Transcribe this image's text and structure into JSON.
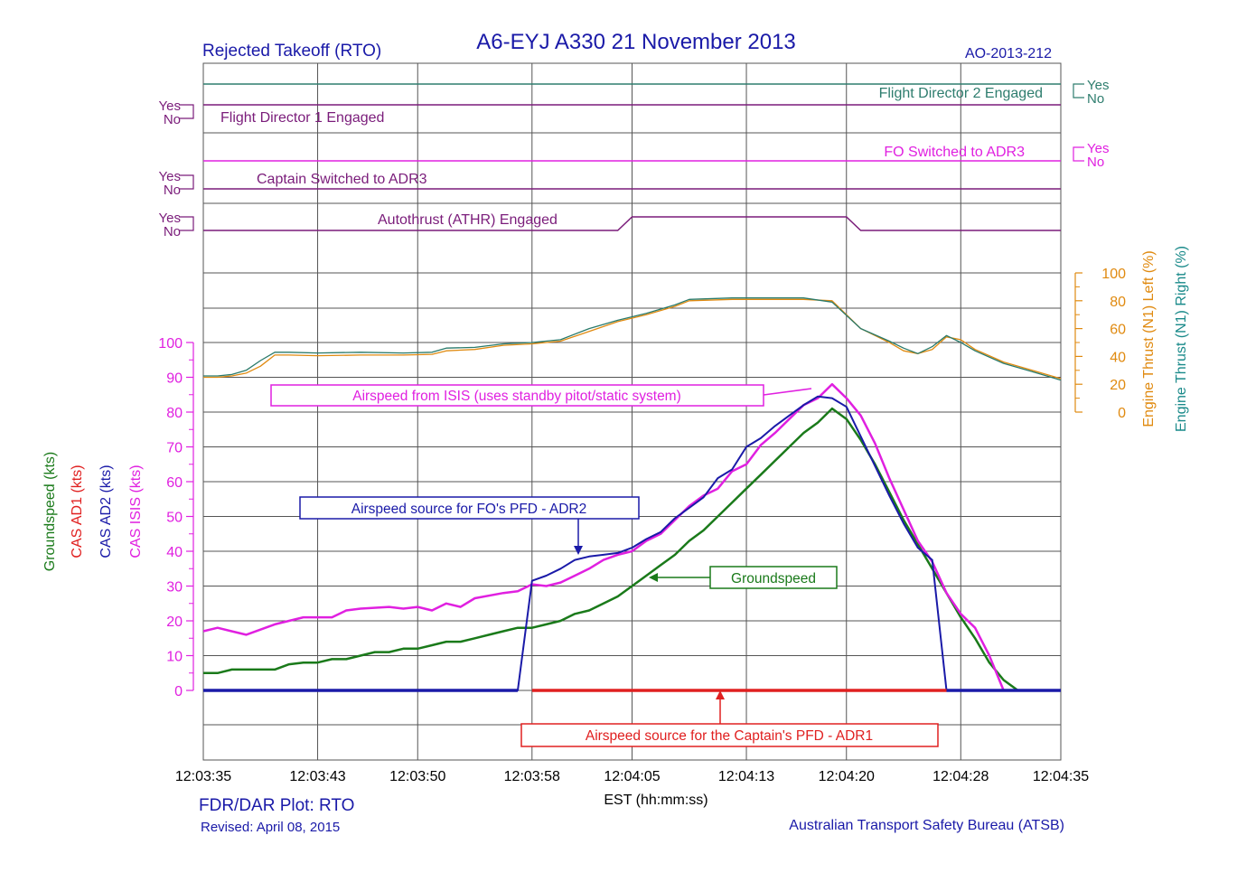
{
  "header": {
    "left": "Rejected Takeoff (RTO)",
    "title": "A6-EYJ  A330  21 November 2013",
    "right": "AO-2013-212"
  },
  "footer": {
    "plot": "FDR/DAR Plot: RTO",
    "revised": "Revised: April 08, 2015",
    "agency": "Australian Transport Safety Bureau (ATSB)",
    "xlabel": "EST (hh:mm:ss)"
  },
  "colors": {
    "fd": "#2e7d6e",
    "purple": "#7a1c7a",
    "magenta": "#e020e0",
    "green": "#1a7a1a",
    "red": "#e02020",
    "blue": "#1a1aa8",
    "orange": "#e08a10",
    "teal": "#1a8a8a",
    "grid": "#555555"
  },
  "discretes": [
    {
      "key": "fd2",
      "label": "Flight Director 2 Engaged",
      "side": "right",
      "yes": "Yes",
      "no": "No",
      "state": "Yes"
    },
    {
      "key": "fd1",
      "label": "Flight Director 1 Engaged",
      "side": "left",
      "yes": "Yes",
      "no": "No",
      "state": "Yes"
    },
    {
      "key": "fo_adr3",
      "label": "FO Switched to ADR3",
      "side": "right",
      "yes": "Yes",
      "no": "No",
      "state": "No"
    },
    {
      "key": "capt_adr3",
      "label": "Captain Switched to ADR3",
      "side": "left",
      "yes": "Yes",
      "no": "No",
      "state": "No"
    },
    {
      "key": "athr",
      "label": "Autothrust (ATHR) Engaged",
      "side": "left",
      "yes": "Yes",
      "no": "No",
      "state": "No",
      "transitions": [
        [
          "12:04:04",
          "12:04:05"
        ],
        [
          "12:04:20",
          "12:04:21"
        ]
      ]
    }
  ],
  "annotations": {
    "isis": "Airspeed from ISIS (uses standby pitot/static system)",
    "fo_pfd": "Airspeed source for FO's PFD - ADR2",
    "groundspeed": "Groundspeed",
    "capt_pfd": "Airspeed source for the Captain's PFD - ADR1"
  },
  "chart_data": {
    "type": "line",
    "x_ticks": [
      "12:03:35",
      "12:03:43",
      "12:03:50",
      "12:03:58",
      "12:04:05",
      "12:04:13",
      "12:04:20",
      "12:04:28",
      "12:04:35"
    ],
    "xlabel": "EST (hh:mm:ss)",
    "left_axis": {
      "labels": [
        "Groundspeed (kts)",
        "CAS AD1 (kts)",
        "CAS AD2 (kts)",
        "CAS ISIS (kts)"
      ],
      "ylim": [
        0,
        100
      ],
      "ticks": [
        0,
        10,
        20,
        30,
        40,
        50,
        60,
        70,
        80,
        90,
        100
      ]
    },
    "right_axis": {
      "labels": [
        "Engine Thrust (N1) Left (%)",
        "Engine Thrust (N1) Right (%)"
      ],
      "ylim": [
        0,
        100
      ],
      "ticks": [
        0,
        20,
        40,
        60,
        80,
        100
      ]
    },
    "series": [
      {
        "name": "CAS ISIS (kts)",
        "color": "#e020e0",
        "points": [
          [
            "12:03:35",
            17
          ],
          [
            "12:03:36",
            18
          ],
          [
            "12:03:38",
            16
          ],
          [
            "12:03:40",
            19
          ],
          [
            "12:03:42",
            21
          ],
          [
            "12:03:44",
            21
          ],
          [
            "12:03:45",
            23
          ],
          [
            "12:03:46",
            23.5
          ],
          [
            "12:03:48",
            24
          ],
          [
            "12:03:49",
            23.5
          ],
          [
            "12:03:50",
            24
          ],
          [
            "12:03:51",
            23
          ],
          [
            "12:03:52",
            25
          ],
          [
            "12:03:53",
            24
          ],
          [
            "12:03:54",
            26.5
          ],
          [
            "12:03:56",
            28
          ],
          [
            "12:03:57",
            28.5
          ],
          [
            "12:03:58",
            30.5
          ],
          [
            "12:03:59",
            30
          ],
          [
            "12:04:00",
            31
          ],
          [
            "12:04:01",
            33
          ],
          [
            "12:04:02",
            35
          ],
          [
            "12:04:03",
            37.5
          ],
          [
            "12:04:04",
            39
          ],
          [
            "12:04:05",
            40
          ],
          [
            "12:04:06",
            43
          ],
          [
            "12:04:07",
            45
          ],
          [
            "12:04:08",
            49
          ],
          [
            "12:04:09",
            53
          ],
          [
            "12:04:10",
            56
          ],
          [
            "12:04:11",
            58
          ],
          [
            "12:04:12",
            63
          ],
          [
            "12:04:13",
            65
          ],
          [
            "12:04:14",
            70.5
          ],
          [
            "12:04:15",
            74
          ],
          [
            "12:04:16",
            78
          ],
          [
            "12:04:17",
            82
          ],
          [
            "12:04:18",
            84
          ],
          [
            "12:04:19",
            88
          ],
          [
            "12:04:20",
            84
          ],
          [
            "12:04:21",
            79
          ],
          [
            "12:04:22",
            71
          ],
          [
            "12:04:23",
            61
          ],
          [
            "12:04:24",
            52
          ],
          [
            "12:04:25",
            43
          ],
          [
            "12:04:26",
            37
          ],
          [
            "12:04:27",
            28
          ],
          [
            "12:04:28",
            22
          ],
          [
            "12:04:29",
            18
          ],
          [
            "12:04:30",
            10
          ],
          [
            "12:04:31",
            0
          ]
        ]
      },
      {
        "name": "CAS AD2 (kts)",
        "color": "#1a1aa8",
        "points": [
          [
            "12:03:35",
            0
          ],
          [
            "12:03:57",
            0
          ],
          [
            "12:03:58",
            31.5
          ],
          [
            "12:03:59",
            33
          ],
          [
            "12:04:00",
            35
          ],
          [
            "12:04:01",
            37.5
          ],
          [
            "12:04:02",
            38.5
          ],
          [
            "12:04:03",
            39
          ],
          [
            "12:04:04",
            39.5
          ],
          [
            "12:04:05",
            41
          ],
          [
            "12:04:06",
            43.5
          ],
          [
            "12:04:07",
            45.5
          ],
          [
            "12:04:08",
            49.5
          ],
          [
            "12:04:09",
            52.5
          ],
          [
            "12:04:10",
            55.5
          ],
          [
            "12:04:11",
            61
          ],
          [
            "12:04:12",
            63.5
          ],
          [
            "12:04:13",
            70
          ],
          [
            "12:04:14",
            72.5
          ],
          [
            "12:04:15",
            76
          ],
          [
            "12:04:16",
            79
          ],
          [
            "12:04:17",
            82
          ],
          [
            "12:04:18",
            84.5
          ],
          [
            "12:04:19",
            84
          ],
          [
            "12:04:20",
            81.5
          ],
          [
            "12:04:21",
            73
          ],
          [
            "12:04:22",
            64.5
          ],
          [
            "12:04:23",
            56
          ],
          [
            "12:04:24",
            48
          ],
          [
            "12:04:25",
            41
          ],
          [
            "12:04:26",
            37.5
          ],
          [
            "12:04:27",
            0
          ],
          [
            "12:04:35",
            0
          ]
        ]
      },
      {
        "name": "Groundspeed (kts)",
        "color": "#1a7a1a",
        "points": [
          [
            "12:03:35",
            5
          ],
          [
            "12:03:36",
            5
          ],
          [
            "12:03:37",
            6
          ],
          [
            "12:03:40",
            6
          ],
          [
            "12:03:41",
            7.5
          ],
          [
            "12:03:42",
            8
          ],
          [
            "12:03:43",
            8
          ],
          [
            "12:03:44",
            9
          ],
          [
            "12:03:45",
            9
          ],
          [
            "12:03:46",
            10
          ],
          [
            "12:03:47",
            11
          ],
          [
            "12:03:48",
            11
          ],
          [
            "12:03:49",
            12
          ],
          [
            "12:03:50",
            12
          ],
          [
            "12:03:51",
            13
          ],
          [
            "12:03:52",
            14
          ],
          [
            "12:03:53",
            14
          ],
          [
            "12:03:54",
            15
          ],
          [
            "12:03:55",
            16
          ],
          [
            "12:03:56",
            17
          ],
          [
            "12:03:57",
            18
          ],
          [
            "12:03:58",
            18
          ],
          [
            "12:03:59",
            19
          ],
          [
            "12:04:00",
            20
          ],
          [
            "12:04:01",
            22
          ],
          [
            "12:04:02",
            23
          ],
          [
            "12:04:03",
            25
          ],
          [
            "12:04:04",
            27
          ],
          [
            "12:04:05",
            30
          ],
          [
            "12:04:06",
            33
          ],
          [
            "12:04:07",
            36
          ],
          [
            "12:04:08",
            39
          ],
          [
            "12:04:09",
            43
          ],
          [
            "12:04:10",
            46
          ],
          [
            "12:04:11",
            50
          ],
          [
            "12:04:12",
            54
          ],
          [
            "12:04:13",
            58
          ],
          [
            "12:04:14",
            62
          ],
          [
            "12:04:15",
            66
          ],
          [
            "12:04:16",
            70
          ],
          [
            "12:04:17",
            74
          ],
          [
            "12:04:18",
            77
          ],
          [
            "12:04:19",
            81
          ],
          [
            "12:04:20",
            78
          ],
          [
            "12:04:21",
            72
          ],
          [
            "12:04:22",
            65
          ],
          [
            "12:04:23",
            57
          ],
          [
            "12:04:24",
            49
          ],
          [
            "12:04:25",
            42
          ],
          [
            "12:04:26",
            35
          ],
          [
            "12:04:27",
            28
          ],
          [
            "12:04:28",
            21
          ],
          [
            "12:04:29",
            15
          ],
          [
            "12:04:30",
            8
          ],
          [
            "12:04:31",
            3
          ],
          [
            "12:04:32",
            0
          ]
        ]
      },
      {
        "name": "CAS AD1 (kts)",
        "color": "#e02020",
        "points": [
          [
            "12:03:58",
            0
          ],
          [
            "12:04:27",
            0
          ]
        ]
      },
      {
        "name": "Engine Thrust (N1) Left (%)",
        "color": "#e08a10",
        "points": [
          [
            "12:03:35",
            25
          ],
          [
            "12:03:36",
            25
          ],
          [
            "12:03:37",
            26
          ],
          [
            "12:03:38",
            28
          ],
          [
            "12:03:39",
            33
          ],
          [
            "12:03:40",
            41
          ],
          [
            "12:03:41",
            41
          ],
          [
            "12:03:43",
            40.5
          ],
          [
            "12:03:46",
            41
          ],
          [
            "12:03:49",
            41
          ],
          [
            "12:03:51",
            41.5
          ],
          [
            "12:03:52",
            44
          ],
          [
            "12:03:54",
            45
          ],
          [
            "12:03:56",
            48
          ],
          [
            "12:03:58",
            49
          ],
          [
            "12:04:00",
            51
          ],
          [
            "12:04:02",
            58
          ],
          [
            "12:04:04",
            65
          ],
          [
            "12:04:06",
            70
          ],
          [
            "12:04:08",
            76
          ],
          [
            "12:04:09",
            80
          ],
          [
            "12:04:12",
            81
          ],
          [
            "12:04:17",
            81
          ],
          [
            "12:04:19",
            80
          ],
          [
            "12:04:21",
            60
          ],
          [
            "12:04:23",
            50
          ],
          [
            "12:04:24",
            44
          ],
          [
            "12:04:25",
            42
          ],
          [
            "12:04:26",
            45
          ],
          [
            "12:04:27",
            54
          ],
          [
            "12:04:28",
            52
          ],
          [
            "12:04:29",
            45
          ],
          [
            "12:04:31",
            36
          ],
          [
            "12:04:33",
            30
          ],
          [
            "12:04:35",
            24
          ]
        ]
      },
      {
        "name": "Engine Thrust (N1) Right (%)",
        "color": "#2a7a6a",
        "points": [
          [
            "12:03:35",
            26
          ],
          [
            "12:03:36",
            26
          ],
          [
            "12:03:37",
            27
          ],
          [
            "12:03:38",
            30
          ],
          [
            "12:03:39",
            37
          ],
          [
            "12:03:40",
            43
          ],
          [
            "12:03:41",
            43
          ],
          [
            "12:03:43",
            42.5
          ],
          [
            "12:03:46",
            43
          ],
          [
            "12:03:49",
            42.5
          ],
          [
            "12:03:51",
            43
          ],
          [
            "12:03:52",
            46
          ],
          [
            "12:03:54",
            46.5
          ],
          [
            "12:03:56",
            49
          ],
          [
            "12:03:58",
            50
          ],
          [
            "12:04:00",
            52
          ],
          [
            "12:04:02",
            60
          ],
          [
            "12:04:04",
            66
          ],
          [
            "12:04:06",
            71
          ],
          [
            "12:04:08",
            77
          ],
          [
            "12:04:09",
            81
          ],
          [
            "12:04:12",
            82
          ],
          [
            "12:04:17",
            82
          ],
          [
            "12:04:19",
            79
          ],
          [
            "12:04:21",
            60
          ],
          [
            "12:04:23",
            51
          ],
          [
            "12:04:24",
            46
          ],
          [
            "12:04:25",
            42
          ],
          [
            "12:04:26",
            47
          ],
          [
            "12:04:27",
            55
          ],
          [
            "12:04:28",
            50
          ],
          [
            "12:04:29",
            44
          ],
          [
            "12:04:31",
            35
          ],
          [
            "12:04:33",
            29
          ],
          [
            "12:04:35",
            23
          ]
        ]
      }
    ]
  }
}
